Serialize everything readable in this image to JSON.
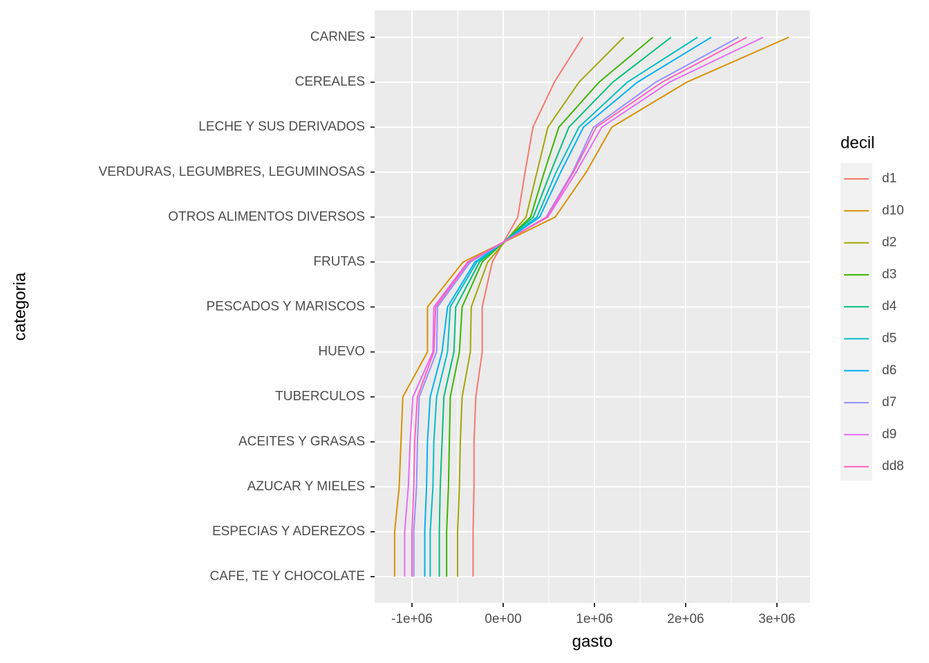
{
  "chart_data": {
    "type": "line",
    "x_label": "gasto",
    "y_label": "categoria",
    "legend_title": "decil",
    "legend": "right",
    "grid": true,
    "categories": [
      "CARNES",
      "CEREALES",
      "LECHE Y SUS DERIVADOS",
      "VERDURAS, LEGUMBRES, LEGUMINOSAS",
      "OTROS ALIMENTOS DIVERSOS",
      "FRUTAS",
      "PESCADOS Y MARISCOS",
      "HUEVO",
      "TUBERCULOS",
      "ACEITES Y GRASAS",
      "AZUCAR Y MIELES",
      "ESPECIAS Y ADEREZOS",
      "CAFE, TE Y CHOCOLATE"
    ],
    "xlim": [
      -1409000,
      3364000
    ],
    "xticks": [
      {
        "value": -1000000,
        "label": "-1e+06"
      },
      {
        "value": 0,
        "label": "0e+00"
      },
      {
        "value": 1000000,
        "label": "1e+06"
      },
      {
        "value": 2000000,
        "label": "2e+06"
      },
      {
        "value": 3000000,
        "label": "3e+06"
      }
    ],
    "series": [
      {
        "name": "d1",
        "color": "#F8766D",
        "values": [
          871000,
          560000,
          326000,
          240000,
          160000,
          -120000,
          -230000,
          -230000,
          -300000,
          -320000,
          -320000,
          -330000,
          -330000
        ]
      },
      {
        "name": "d10",
        "color": "#D89000",
        "values": [
          3130000,
          2010000,
          1190000,
          910000,
          570000,
          -440000,
          -830000,
          -830000,
          -1100000,
          -1120000,
          -1140000,
          -1190000,
          -1190000
        ]
      },
      {
        "name": "d2",
        "color": "#A3A500",
        "values": [
          1320000,
          830000,
          490000,
          370000,
          250000,
          -170000,
          -350000,
          -360000,
          -450000,
          -470000,
          -480000,
          -500000,
          -500000
        ]
      },
      {
        "name": "d3",
        "color": "#39B600",
        "values": [
          1640000,
          1050000,
          610000,
          450000,
          300000,
          -230000,
          -450000,
          -480000,
          -580000,
          -590000,
          -600000,
          -620000,
          -620000
        ]
      },
      {
        "name": "d4",
        "color": "#00BF7D",
        "values": [
          1840000,
          1200000,
          720000,
          520000,
          330000,
          -260000,
          -520000,
          -540000,
          -650000,
          -670000,
          -690000,
          -700000,
          -700000
        ]
      },
      {
        "name": "d5",
        "color": "#00BFC4",
        "values": [
          2130000,
          1360000,
          830000,
          580000,
          370000,
          -290000,
          -580000,
          -610000,
          -730000,
          -760000,
          -770000,
          -800000,
          -800000
        ]
      },
      {
        "name": "d6",
        "color": "#00B0F6",
        "values": [
          2280000,
          1470000,
          880000,
          630000,
          400000,
          -310000,
          -610000,
          -670000,
          -800000,
          -830000,
          -840000,
          -860000,
          -860000
        ]
      },
      {
        "name": "d7",
        "color": "#9590FF",
        "values": [
          2580000,
          1670000,
          990000,
          760000,
          470000,
          -360000,
          -720000,
          -730000,
          -920000,
          -940000,
          -950000,
          -980000,
          -980000
        ]
      },
      {
        "name": "d9",
        "color": "#E76BF3",
        "values": [
          2850000,
          1820000,
          1080000,
          800000,
          490000,
          -390000,
          -760000,
          -770000,
          -990000,
          -1020000,
          -1040000,
          -1080000,
          -1080000
        ]
      },
      {
        "name": "dd8",
        "color": "#FF62BC",
        "values": [
          2670000,
          1740000,
          1020000,
          770000,
          480000,
          -380000,
          -740000,
          -760000,
          -940000,
          -970000,
          -980000,
          -1000000,
          -1000000
        ]
      }
    ]
  }
}
